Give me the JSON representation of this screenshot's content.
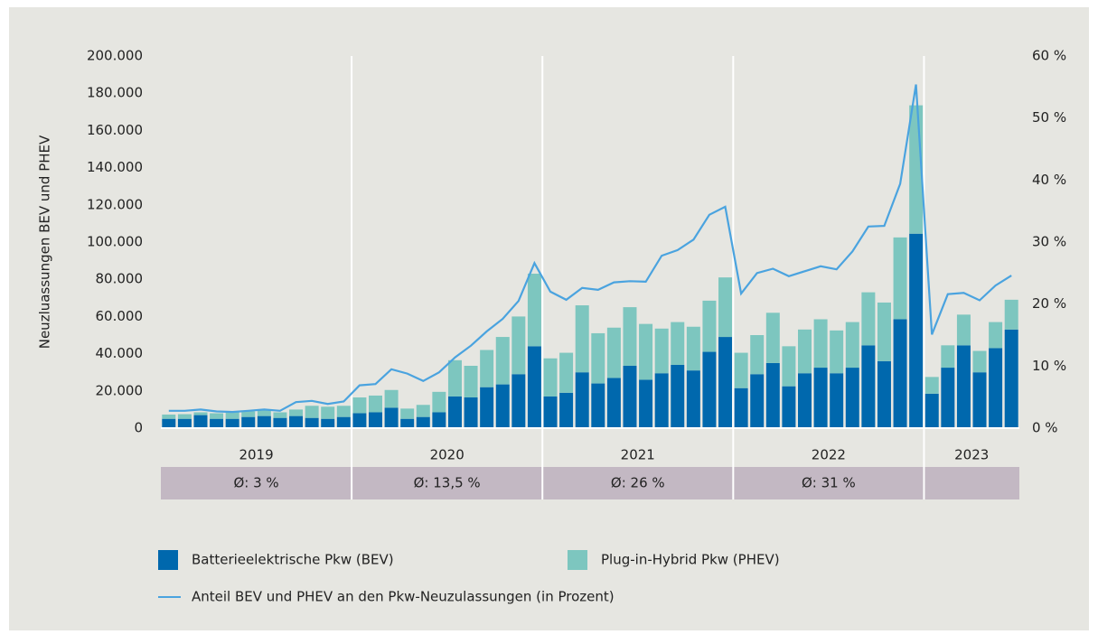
{
  "chart_data": {
    "type": "bar-line",
    "y_label": "Neuzluassungen BEV und PHEV",
    "categories": [
      null,
      null,
      null,
      null,
      null,
      null,
      null,
      null,
      null,
      null,
      null,
      null,
      null,
      null,
      null,
      null,
      null,
      null,
      null,
      null,
      null,
      null,
      null,
      null,
      null,
      null,
      null,
      null,
      null,
      null,
      null,
      null,
      null,
      null,
      null,
      null,
      null,
      null,
      null,
      null,
      null,
      null,
      null,
      null,
      null,
      null,
      null,
      null,
      null,
      null,
      null,
      null,
      null,
      null
    ],
    "years": [
      "2019",
      "2020",
      "2021",
      "2022",
      "2023"
    ],
    "averages": [
      "Ø: 3 %",
      "Ø: 13,5 %",
      "Ø: 26 %",
      "Ø: 31 %"
    ],
    "series": [
      {
        "name": "Batterieelektrische Pkw (BEV)",
        "color": "#0068ad",
        "values": [
          5000,
          5000,
          7000,
          5000,
          5000,
          6000,
          6500,
          5500,
          6500,
          5500,
          5000,
          6000,
          8000,
          8500,
          11000,
          5000,
          6000,
          8500,
          17000,
          16500,
          22000,
          23500,
          29000,
          44000,
          17000,
          19000,
          30000,
          24000,
          27000,
          33500,
          26000,
          29500,
          34000,
          31000,
          41000,
          49000,
          21500,
          29000,
          35000,
          22500,
          29500,
          32500,
          29500,
          32500,
          44500,
          36000,
          58500,
          104500,
          18500,
          32500,
          44500,
          30000,
          43000,
          53000
        ]
      },
      {
        "name": "Plug-in-Hybrid Pkw (PHEV)",
        "color": "#7dc6bf",
        "values": [
          2300,
          2500,
          1500,
          3000,
          3500,
          3000,
          3000,
          3000,
          3500,
          6500,
          6500,
          6000,
          8500,
          9000,
          9500,
          5500,
          6500,
          11000,
          19500,
          17000,
          20000,
          25500,
          31000,
          39000,
          20500,
          21500,
          36000,
          27000,
          27000,
          31500,
          30000,
          24000,
          23000,
          23500,
          27500,
          32000,
          19000,
          21000,
          27000,
          21500,
          23500,
          26000,
          23000,
          24500,
          28500,
          31500,
          44000,
          69000,
          9000,
          12000,
          16500,
          11500,
          14000,
          16000
        ]
      },
      {
        "name": "Anteil BEV und PHEV an den Pkw-Neuzulassungen (in Prozent)",
        "color": "#4aa3df",
        "axis": "y2",
        "values": [
          2.8,
          2.8,
          3.0,
          2.7,
          2.6,
          2.8,
          3.0,
          2.8,
          4.2,
          4.4,
          3.9,
          4.3,
          6.9,
          7.1,
          9.5,
          8.8,
          7.6,
          9.0,
          11.4,
          13.3,
          15.6,
          17.6,
          20.5,
          26.6,
          22.0,
          20.7,
          22.6,
          22.3,
          23.5,
          23.7,
          23.6,
          27.8,
          28.7,
          30.4,
          34.4,
          35.7,
          21.7,
          25.0,
          25.7,
          24.5,
          25.3,
          26.1,
          25.6,
          28.5,
          32.5,
          32.6,
          39.4,
          55.4,
          15.1,
          21.6,
          21.8,
          20.6,
          23.0,
          24.6
        ]
      }
    ],
    "ylim": [
      0,
      200000
    ],
    "yticks": [
      0,
      {
        "value": 20000,
        "label": "20.000"
      },
      {
        "value": 40000,
        "label": "40.000"
      },
      {
        "value": 60000,
        "label": "60.000"
      },
      {
        "value": 80000,
        "label": "80.000"
      },
      {
        "value": 100000,
        "label": "100.000"
      },
      {
        "value": 120000,
        "label": "120.000"
      },
      {
        "value": 140000,
        "label": "140.000"
      },
      {
        "value": 160000,
        "label": "160.000"
      },
      {
        "value": 180000,
        "label": "180.000"
      },
      {
        "value": 200000,
        "label": "200.000"
      }
    ],
    "y2lim": [
      0,
      60
    ],
    "y2ticks": [
      {
        "value": 0,
        "label": "0 %"
      },
      {
        "value": 10,
        "label": "10 %"
      },
      {
        "value": 20,
        "label": "20 %"
      },
      {
        "value": 30,
        "label": "30 %"
      },
      {
        "value": 40,
        "label": "40 %"
      },
      {
        "value": 50,
        "label": "50 %"
      },
      {
        "value": 60,
        "label": "60 %"
      }
    ]
  }
}
